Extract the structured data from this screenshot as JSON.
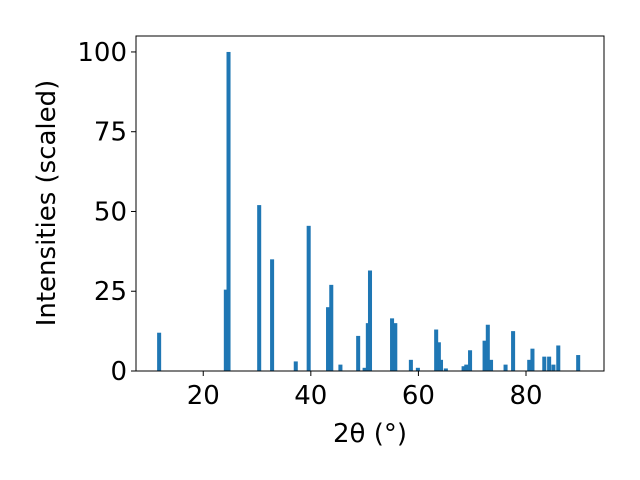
{
  "chart_data": {
    "type": "bar",
    "xlabel": "2θ (°)",
    "ylabel": "Intensities (scaled)",
    "xlim": [
      7.5,
      94.5
    ],
    "ylim": [
      0,
      105
    ],
    "xticks": [
      20,
      40,
      60,
      80
    ],
    "yticks": [
      0,
      25,
      50,
      75,
      100
    ],
    "grid": false,
    "bar_color": "#1f77b4",
    "bar_width": 0.75,
    "bars": [
      {
        "x": 11.8,
        "y": 12
      },
      {
        "x": 24.2,
        "y": 25.5
      },
      {
        "x": 24.7,
        "y": 100
      },
      {
        "x": 30.4,
        "y": 52
      },
      {
        "x": 32.8,
        "y": 35
      },
      {
        "x": 37.2,
        "y": 3
      },
      {
        "x": 39.6,
        "y": 45.5
      },
      {
        "x": 43.2,
        "y": 20
      },
      {
        "x": 43.8,
        "y": 27
      },
      {
        "x": 45.5,
        "y": 2
      },
      {
        "x": 48.8,
        "y": 11
      },
      {
        "x": 50.0,
        "y": 1
      },
      {
        "x": 50.6,
        "y": 15
      },
      {
        "x": 51.0,
        "y": 31.5
      },
      {
        "x": 55.1,
        "y": 16.5
      },
      {
        "x": 55.7,
        "y": 15
      },
      {
        "x": 58.6,
        "y": 3.5
      },
      {
        "x": 59.9,
        "y": 1
      },
      {
        "x": 63.3,
        "y": 13
      },
      {
        "x": 63.8,
        "y": 9
      },
      {
        "x": 64.2,
        "y": 3.5
      },
      {
        "x": 65.1,
        "y": 0.8
      },
      {
        "x": 68.4,
        "y": 1.5
      },
      {
        "x": 68.9,
        "y": 2
      },
      {
        "x": 69.6,
        "y": 6.5
      },
      {
        "x": 72.3,
        "y": 9.5
      },
      {
        "x": 72.9,
        "y": 14.5
      },
      {
        "x": 73.5,
        "y": 3.5
      },
      {
        "x": 76.2,
        "y": 2
      },
      {
        "x": 77.6,
        "y": 12.5
      },
      {
        "x": 80.6,
        "y": 3.5
      },
      {
        "x": 81.2,
        "y": 7
      },
      {
        "x": 83.4,
        "y": 4.5
      },
      {
        "x": 84.3,
        "y": 4.5
      },
      {
        "x": 85.1,
        "y": 2
      },
      {
        "x": 86.0,
        "y": 8
      },
      {
        "x": 89.7,
        "y": 5
      }
    ]
  }
}
